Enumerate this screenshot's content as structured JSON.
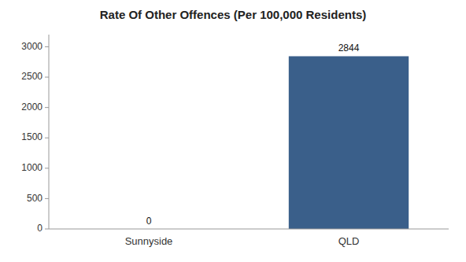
{
  "chart_data": {
    "type": "bar",
    "title": "Rate Of Other Offences (Per 100,000 Residents)",
    "categories": [
      "Sunnyside",
      "QLD"
    ],
    "values": [
      0,
      2844
    ],
    "color": "#3a5f8a",
    "ylim": [
      0,
      3200
    ],
    "yticks": [
      0,
      500,
      1000,
      1500,
      2000,
      2500,
      3000
    ],
    "grid": false,
    "data_labels": true
  }
}
